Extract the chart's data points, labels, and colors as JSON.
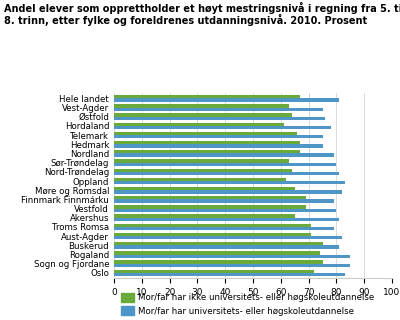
{
  "title_line1": "Andel elever som opprettholder et høyt mestringsnivå i regning fra 5. til",
  "title_line2": "8. trinn, etter fylke og foreldrenes utdanningsnivå. 2010. Prosent",
  "categories": [
    "Hele landet",
    "Vest-Agder",
    "Østfold",
    "Hordaland",
    "Telemark",
    "Hedmark",
    "Nordland",
    "Sør-Trøndelag",
    "Nord-Trøndelag",
    "Oppland",
    "Møre og Romsdal",
    "Finnmark Finnmárku",
    "Vestfold",
    "Akershus",
    "Troms Romsa",
    "Aust-Agder",
    "Buskerud",
    "Rogaland",
    "Sogn og Fjordane",
    "Oslo"
  ],
  "green_values": [
    67,
    63,
    64,
    61,
    66,
    67,
    67,
    63,
    64,
    62,
    65,
    69,
    69,
    65,
    71,
    71,
    75,
    74,
    75,
    72
  ],
  "blue_values": [
    81,
    75,
    76,
    78,
    75,
    75,
    79,
    80,
    81,
    83,
    82,
    79,
    80,
    81,
    79,
    82,
    81,
    85,
    85,
    83
  ],
  "green_color": "#6aaa3a",
  "blue_color": "#4f96c8",
  "legend_green": "Mor/far har ikke universitets- eller høgskoleutdannelse",
  "legend_blue": "Mor/far har universitets- eller høgskoleutdannelse",
  "xlim": [
    0,
    100
  ],
  "xticks": [
    0,
    10,
    20,
    30,
    40,
    50,
    60,
    70,
    80,
    90,
    100
  ],
  "background_color": "#ffffff",
  "grid_color": "#cccccc",
  "title_fontsize": 7.0,
  "label_fontsize": 6.2,
  "tick_fontsize": 6.5,
  "legend_fontsize": 6.2
}
